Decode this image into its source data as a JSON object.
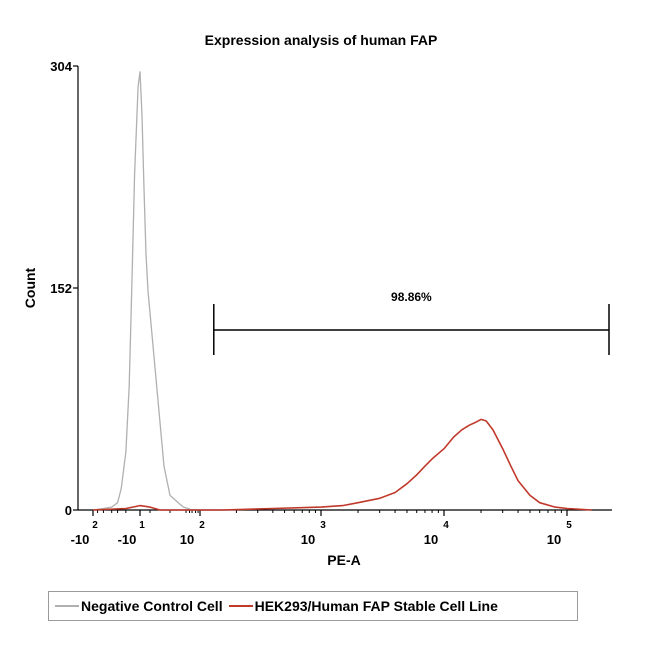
{
  "chart_data": {
    "type": "line",
    "title": "Expression analysis of human FAP",
    "xlabel": "PE-A",
    "ylabel": "Count",
    "x_scale": "biexponential",
    "ylim": [
      0,
      304
    ],
    "yticks": [
      "0",
      "152",
      "304"
    ],
    "xticks": [
      {
        "base": "-10",
        "exp": "2",
        "value": -100
      },
      {
        "base": "-10",
        "exp": "1",
        "value": -10
      },
      {
        "base": "10",
        "exp": "2",
        "value": 100
      },
      {
        "base": "10",
        "exp": "3",
        "value": 1000
      },
      {
        "base": "10",
        "exp": "4",
        "value": 10000
      },
      {
        "base": "10",
        "exp": "5",
        "value": 100000
      }
    ],
    "gate": {
      "label": "98.86%",
      "from": 130,
      "to": 200000
    },
    "legend_position": "bottom",
    "colors": {
      "negative": "#b0b0b0",
      "positive": "#c0392b"
    },
    "series": [
      {
        "name": "Negative Control Cell",
        "color": "#b0b0b0",
        "x": [
          -100,
          -60,
          -40,
          -30,
          -25,
          -20,
          -17,
          -15,
          -13,
          -11,
          -10,
          -9,
          -8,
          -7,
          -6,
          -4,
          -2,
          0,
          2,
          5,
          10,
          15,
          25,
          40,
          60
        ],
        "y": [
          0,
          1,
          2,
          5,
          15,
          40,
          85,
          150,
          230,
          290,
          300,
          270,
          220,
          175,
          150,
          120,
          90,
          60,
          30,
          10,
          4,
          2,
          1,
          0,
          0
        ]
      },
      {
        "name": "HEK293/Human FAP Stable Cell Line",
        "color": "#c0392b",
        "x": [
          -100,
          -20,
          -10,
          -5,
          0,
          30,
          150,
          400,
          1000,
          1500,
          2000,
          3000,
          4000,
          5000,
          6000,
          7000,
          8000,
          10000,
          12000,
          14000,
          16000,
          18000,
          20000,
          22000,
          25000,
          30000,
          35000,
          40000,
          50000,
          60000,
          80000,
          100000,
          150000
        ],
        "y": [
          0,
          1,
          3,
          2,
          0,
          0,
          0,
          1,
          2,
          3,
          5,
          8,
          12,
          18,
          24,
          30,
          35,
          42,
          50,
          55,
          58,
          60,
          62,
          61,
          55,
          42,
          30,
          20,
          10,
          5,
          2,
          1,
          0
        ]
      }
    ]
  }
}
